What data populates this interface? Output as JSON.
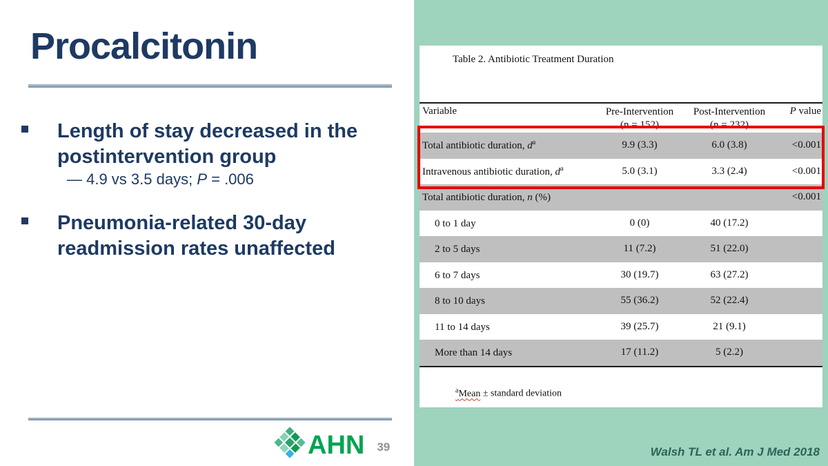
{
  "slide": {
    "title": "Procalcitonin",
    "bullets": [
      {
        "text": "Length of stay decreased in the postintervention group"
      },
      {
        "text": "Pneumonia-related 30-day readmission rates unaffected"
      }
    ],
    "sub_bullet": {
      "pre": "— 4.9 vs 3.5 days; ",
      "p": "P",
      "post": " = .006"
    },
    "page_number": "39",
    "citation": "Walsh TL et al. Am J Med 2018"
  },
  "logo": {
    "text": "AHN",
    "cells": [
      "#3fae7c",
      "#149a53",
      "#56bd92",
      "#89d1b4",
      "#2aa368",
      "#149a53",
      "#4db68a",
      "#8ed6bb",
      "#38b1e2"
    ]
  },
  "table": {
    "title": "Table 2. Antibiotic Treatment Duration",
    "headers": {
      "variable": "Variable",
      "pre_line1": "Pre-Intervention",
      "pre_line2": "(n = 152)",
      "post_line1": "Post-Intervention",
      "post_line2": "(n = 232)",
      "p_italic": "P",
      "p_rest": " value"
    },
    "rows": [
      {
        "cls": "shaded",
        "label": "Total antibiotic duration, ",
        "em": "d",
        "sup": "a",
        "tail": "",
        "pre": "9.9 (3.3)",
        "post": "6.0 (3.8)",
        "p": "<0.001"
      },
      {
        "cls": "",
        "label": "Intravenous antibiotic duration, ",
        "em": "d",
        "sup": "a",
        "tail": "",
        "pre": "5.0 (3.1)",
        "post": "3.3 (2.4)",
        "p": "<0.001"
      },
      {
        "cls": "shaded",
        "label": "Total antibiotic duration, ",
        "em": "n",
        "sup": "",
        "tail": " (%)",
        "pre": "",
        "post": "",
        "p": "<0.001"
      },
      {
        "cls": "indent",
        "label": "0 to 1 day",
        "em": "",
        "sup": "",
        "tail": "",
        "pre": "0 (0)",
        "post": "40 (17.2)",
        "p": ""
      },
      {
        "cls": "shaded indent",
        "label": "2 to 5 days",
        "em": "",
        "sup": "",
        "tail": "",
        "pre": "11 (7.2)",
        "post": "51 (22.0)",
        "p": ""
      },
      {
        "cls": "indent",
        "label": "6 to 7 days",
        "em": "",
        "sup": "",
        "tail": "",
        "pre": "30 (19.7)",
        "post": "63 (27.2)",
        "p": ""
      },
      {
        "cls": "shaded indent",
        "label": "8 to 10 days",
        "em": "",
        "sup": "",
        "tail": "",
        "pre": "55 (36.2)",
        "post": "52 (22.4)",
        "p": ""
      },
      {
        "cls": "indent",
        "label": "11 to 14 days",
        "em": "",
        "sup": "",
        "tail": "",
        "pre": "39 (25.7)",
        "post": "21 (9.1)",
        "p": ""
      },
      {
        "cls": "shaded indent",
        "label": "More than 14 days",
        "em": "",
        "sup": "",
        "tail": "",
        "pre": "17 (11.2)",
        "post": "5 (2.2)",
        "p": ""
      }
    ],
    "footnote": {
      "sup": "a",
      "underlined": "Mean",
      "rest": " ± standard deviation"
    }
  },
  "colors": {
    "accent_navy": "#1e3a63",
    "panel_teal": "#9ed3be",
    "highlight_red": "#e60000",
    "shaded_row_gray": "#bfbfbf",
    "brand_green": "#00a44f",
    "citation_teal": "#2d6458",
    "divider_blue_gray": "#a2b4c4"
  }
}
